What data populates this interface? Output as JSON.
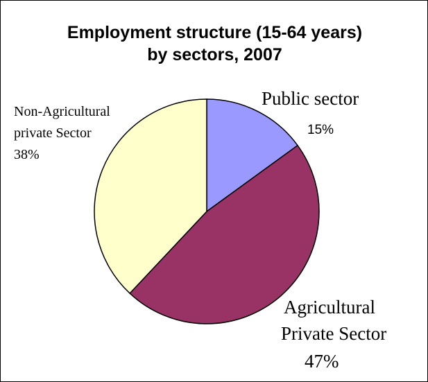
{
  "chart_data": {
    "type": "pie",
    "title": [
      "Employment structure (15-64 years)",
      "by sectors, 2007"
    ],
    "slices": [
      {
        "label": "Public sector",
        "value": 15,
        "percent_label": "15%",
        "color": "#9999ff"
      },
      {
        "label": "Agricultural Private Sector",
        "value": 47,
        "percent_label": "47%",
        "color": "#993366"
      },
      {
        "label": "Non-Agricultural private Sector",
        "value": 38,
        "percent_label": "38%",
        "color": "#ffffcc"
      }
    ],
    "label_lines": {
      "public": [
        "Public sector"
      ],
      "agricultural": [
        "Agricultural",
        "Private Sector"
      ],
      "nonagricultural": [
        "Non-Agricultural",
        "private Sector"
      ]
    },
    "slice_edge_color": "#000000"
  }
}
